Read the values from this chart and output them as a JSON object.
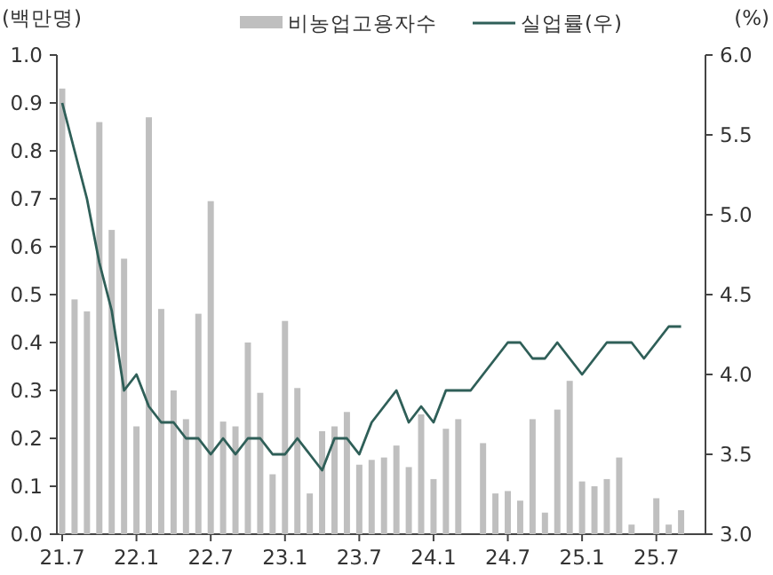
{
  "chart_data": {
    "type": "bar",
    "ylabel": "(백만명)",
    "y2label": "(%)",
    "categories": [
      "21.7",
      null,
      null,
      null,
      null,
      null,
      "22.1",
      null,
      null,
      null,
      null,
      null,
      "22.7",
      null,
      null,
      null,
      null,
      null,
      "23.1",
      null,
      null,
      null,
      null,
      null,
      "23.7",
      null,
      null,
      null,
      null,
      null,
      "24.1",
      null,
      null,
      null,
      null,
      null,
      "24.7",
      null,
      null,
      null,
      null,
      null,
      "25.1",
      null,
      null,
      null,
      null,
      null,
      "25.7",
      null,
      null
    ],
    "series": [
      {
        "name": "비농업고용자수",
        "color": "#bfbfbf",
        "values": [
          0.93,
          0.49,
          0.465,
          0.86,
          0.635,
          0.575,
          0.225,
          0.87,
          0.47,
          0.3,
          0.24,
          0.46,
          0.695,
          0.235,
          0.225,
          0.4,
          0.295,
          0.125,
          0.445,
          0.305,
          0.085,
          0.215,
          0.225,
          0.255,
          0.145,
          0.155,
          0.16,
          0.185,
          0.14,
          0.25,
          0.115,
          0.22,
          0.24,
          null,
          0.19,
          0.085,
          0.09,
          0.07,
          0.24,
          0.045,
          0.26,
          0.32,
          0.11,
          0.1,
          0.115,
          0.16,
          0.02,
          null,
          0.075,
          0.02,
          0.05
        ]
      },
      {
        "name": "실업률(우)",
        "type": "line",
        "axis": "y2",
        "color": "#2f5f58",
        "values": [
          5.7,
          5.4,
          5.1,
          4.7,
          4.4,
          3.9,
          4.0,
          3.8,
          3.7,
          3.7,
          3.6,
          3.6,
          3.5,
          3.6,
          3.5,
          3.6,
          3.6,
          3.5,
          3.5,
          3.6,
          3.5,
          3.4,
          3.6,
          3.6,
          3.5,
          3.7,
          3.8,
          3.9,
          3.7,
          3.8,
          3.7,
          3.9,
          3.9,
          3.9,
          4.0,
          4.1,
          4.2,
          4.2,
          4.1,
          4.1,
          4.2,
          4.1,
          4.0,
          4.1,
          4.2,
          4.2,
          4.2,
          4.1,
          4.2,
          4.3,
          4.3
        ]
      }
    ],
    "ylim": [
      0,
      1.0
    ],
    "yticks": [
      {
        "value": 0,
        "label": "0.0"
      },
      {
        "value": 0.1,
        "label": "0.1"
      },
      {
        "value": 0.2,
        "label": "0.2"
      },
      {
        "value": 0.3,
        "label": "0.3"
      },
      {
        "value": 0.4,
        "label": "0.4"
      },
      {
        "value": 0.5,
        "label": "0.5"
      },
      {
        "value": 0.6,
        "label": "0.6"
      },
      {
        "value": 0.7,
        "label": "0.7"
      },
      {
        "value": 0.8,
        "label": "0.8"
      },
      {
        "value": 0.9,
        "label": "0.9"
      },
      {
        "value": 1.0,
        "label": "1.0"
      }
    ],
    "y2lim": [
      3.0,
      6.0
    ],
    "y2ticks": [
      {
        "value": 3,
        "label": "3.0"
      },
      {
        "value": 3.5,
        "label": "3.5"
      },
      {
        "value": 4,
        "label": "4.0"
      },
      {
        "value": 4.5,
        "label": "4.5"
      },
      {
        "value": 5,
        "label": "5.0"
      },
      {
        "value": 5.5,
        "label": "5.5"
      },
      {
        "value": 6,
        "label": "6.0"
      }
    ],
    "grid": false,
    "legend": "top"
  }
}
